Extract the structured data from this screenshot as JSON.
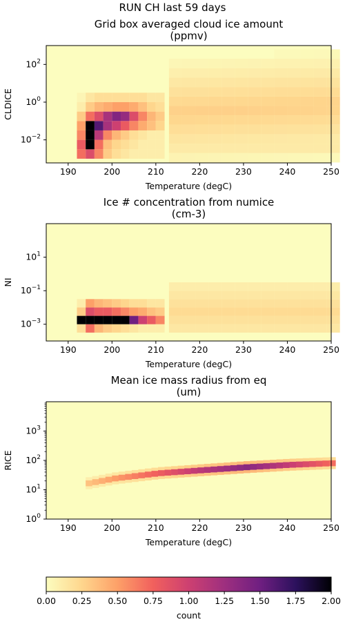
{
  "suptitle": "RUN CH last 59 days",
  "chart_data": [
    {
      "type": "heatmap",
      "title_line1": "Grid box averaged cloud ice amount",
      "title_line2": "(ppmv)",
      "xlabel": "Temperature (degC)",
      "ylabel": "CLDICE",
      "xlim": [
        185,
        250
      ],
      "y_scale": "log",
      "ylim": [
        0.0006,
        1000
      ],
      "xticks": [
        190,
        200,
        210,
        220,
        230,
        240,
        250
      ],
      "yticks": [
        {
          "value": 0.01,
          "base": "10",
          "exp": "−2"
        },
        {
          "value": 1,
          "base": "10",
          "exp": "0"
        },
        {
          "value": 100,
          "base": "10",
          "exp": "2"
        }
      ],
      "cells": {
        "x_bins": [
          192,
          194,
          196,
          198,
          200,
          202,
          204,
          206,
          208,
          210
        ],
        "logy_bins": [
          -3.0,
          -2.5,
          -2.0,
          -1.5,
          -1.0,
          -0.5,
          0.0
        ],
        "counts_description": "values are count per bin",
        "rows": [
          [
            0.7,
            0.9,
            0.6,
            0.3,
            0.2,
            0.15,
            0.1,
            0.1,
            0.1,
            0.1
          ],
          [
            0.8,
            2.0,
            0.7,
            0.35,
            0.25,
            0.2,
            0.15,
            0.1,
            0.1,
            0.1
          ],
          [
            0.6,
            2.0,
            1.1,
            0.6,
            0.4,
            0.3,
            0.2,
            0.15,
            0.1,
            0.1
          ],
          [
            0.5,
            2.0,
            1.6,
            1.2,
            1.0,
            0.8,
            0.6,
            0.45,
            0.35,
            0.25
          ],
          [
            0.3,
            0.7,
            0.9,
            1.2,
            1.4,
            1.3,
            0.9,
            0.6,
            0.4,
            0.3
          ],
          [
            0.1,
            0.3,
            0.4,
            0.45,
            0.5,
            0.5,
            0.45,
            0.35,
            0.25,
            0.2
          ],
          [
            0.05,
            0.15,
            0.2,
            0.2,
            0.2,
            0.2,
            0.2,
            0.2,
            0.15,
            0.15
          ]
        ]
      }
    },
    {
      "type": "heatmap",
      "title_line1": "Ice # concentration from numice",
      "title_line2": "(cm-3)",
      "xlabel": "Temperature (degC)",
      "ylabel": "NI",
      "xlim": [
        185,
        250
      ],
      "y_scale": "log",
      "ylim": [
        0.0001,
        1000
      ],
      "xticks": [
        190,
        200,
        210,
        220,
        230,
        240,
        250
      ],
      "yticks": [
        {
          "value": 0.001,
          "base": "10",
          "exp": "−3"
        },
        {
          "value": 0.1,
          "base": "10",
          "exp": "−1"
        },
        {
          "value": 10,
          "base": "10",
          "exp": "1"
        }
      ],
      "cells": {
        "x_bins": [
          192,
          194,
          196,
          198,
          200,
          202,
          204,
          206,
          208,
          210
        ],
        "logy_bins": [
          -3.5,
          -3.0,
          -2.5,
          -2.0
        ],
        "rows": [
          [
            0.2,
            0.7,
            0.4,
            0.3,
            0.25,
            0.2,
            0.15,
            0.1,
            0.1,
            0.1
          ],
          [
            2.0,
            2.0,
            2.0,
            2.0,
            2.0,
            2.0,
            1.5,
            1.0,
            0.8,
            0.6
          ],
          [
            0.3,
            0.9,
            0.8,
            0.8,
            0.7,
            0.6,
            0.5,
            0.45,
            0.35,
            0.3
          ],
          [
            0.1,
            0.5,
            0.4,
            0.35,
            0.3,
            0.25,
            0.2,
            0.2,
            0.15,
            0.15
          ]
        ]
      }
    },
    {
      "type": "heatmap",
      "title_line1": "Mean ice mass radius from eq",
      "title_line2": "(um)",
      "xlabel": "Temperature (degC)",
      "ylabel": "RICE",
      "xlim": [
        185,
        250
      ],
      "y_scale": "log",
      "ylim": [
        1,
        10000
      ],
      "xticks": [
        190,
        200,
        210,
        220,
        230,
        240,
        250
      ],
      "yticks": [
        {
          "value": 1,
          "base": "10",
          "exp": "0"
        },
        {
          "value": 10,
          "base": "10",
          "exp": "1"
        },
        {
          "value": 100,
          "base": "10",
          "exp": "2"
        },
        {
          "value": 1000,
          "base": "10",
          "exp": "3"
        }
      ],
      "ridge": {
        "x": [
          194,
          200,
          210,
          220,
          230,
          240,
          250
        ],
        "y": [
          15,
          22,
          33,
          42,
          53,
          64,
          73
        ],
        "peak_count": [
          0.4,
          0.6,
          0.9,
          1.3,
          1.6,
          1.2,
          0.8
        ]
      }
    }
  ],
  "colorbar": {
    "label": "count",
    "range": [
      0.0,
      2.0
    ],
    "ticks": [
      "0.00",
      "0.25",
      "0.50",
      "0.75",
      "1.00",
      "1.25",
      "1.50",
      "1.75",
      "2.00"
    ],
    "colormap": "magma_r"
  }
}
